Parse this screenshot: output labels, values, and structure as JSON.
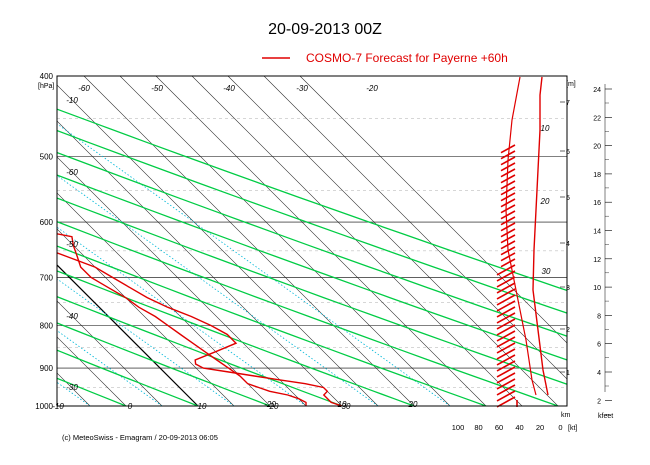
{
  "title": "20-09-2013  00Z",
  "legend": {
    "label": "COSMO-7 Forecast for Payerne   +60h",
    "color": "#e00000"
  },
  "footer": "(c) MeteoSwiss - Emagram  /  20-09-2013  06:05",
  "colors": {
    "temperature_profile": "#e00000",
    "dewpoint_profile": "#e00000",
    "isotherm_grid": "#000000",
    "dry_adiabat": "#00cc44",
    "mixing_ratio": "#00b8d8",
    "wind_barb": "#e00000"
  },
  "chart_data": {
    "type": "line",
    "y_scale": "log-pressure",
    "ylabel": "[hPa]",
    "ylim": [
      1000,
      400
    ],
    "xlim": [
      -40,
      40
    ],
    "pressure_ticks": [
      "400",
      "500",
      "600",
      "700",
      "800",
      "900",
      "1000"
    ],
    "temperature_ticks": [
      "-10",
      "0",
      "10",
      "20",
      "30"
    ],
    "temperature_labels_inner": [
      "-60",
      "-50",
      "-40",
      "-30",
      "-20",
      "-10",
      "-60",
      "-50",
      "-40",
      "-30",
      "-20",
      "10",
      "20",
      "30"
    ],
    "height_m_label": "[m]",
    "height_m_ticks": [
      "7",
      "6",
      "5",
      "4",
      "3",
      "2",
      "1"
    ],
    "height_kfeet_label": "kfeet",
    "height_kfeet_ticks": [
      "24",
      "22",
      "20",
      "18",
      "16",
      "14",
      "12",
      "10",
      "8",
      "6",
      "4",
      "2"
    ],
    "km_label": "km",
    "wind_axis_label": "[kt]",
    "wind_axis_ticks": [
      "100",
      "80",
      "60",
      "40",
      "20",
      "0"
    ],
    "wind_speed_ticks": [
      "10",
      "20",
      "30"
    ],
    "series": [
      {
        "name": "Temperature",
        "points": [
          [
            1000,
            20
          ],
          [
            990,
            19
          ],
          [
            970,
            19
          ],
          [
            960,
            20
          ],
          [
            950,
            20
          ],
          [
            940,
            18
          ],
          [
            930,
            15
          ],
          [
            920,
            12
          ],
          [
            910,
            9
          ],
          [
            900,
            6
          ],
          [
            890,
            5.5
          ],
          [
            880,
            6
          ],
          [
            860,
            10
          ],
          [
            840,
            14
          ],
          [
            820,
            14
          ],
          [
            800,
            13
          ],
          [
            780,
            11.5
          ],
          [
            760,
            9.5
          ],
          [
            740,
            8
          ],
          [
            720,
            7
          ],
          [
            700,
            6
          ],
          [
            680,
            5
          ],
          [
            660,
            2.5
          ],
          [
            640,
            0
          ],
          [
            620,
            -2.5
          ],
          [
            600,
            -5
          ],
          [
            580,
            -7.5
          ],
          [
            560,
            -10
          ],
          [
            540,
            -12.5
          ],
          [
            520,
            -15
          ],
          [
            500,
            -17
          ],
          [
            480,
            -19
          ],
          [
            460,
            -21
          ],
          [
            440,
            -24
          ],
          [
            420,
            -27.5
          ],
          [
            400,
            -31
          ]
        ]
      },
      {
        "name": "Dewpoint",
        "points": [
          [
            1000,
            15
          ],
          [
            990,
            15.5
          ],
          [
            980,
            15
          ],
          [
            970,
            14
          ],
          [
            960,
            12
          ],
          [
            950,
            11
          ],
          [
            940,
            10
          ],
          [
            920,
            10
          ],
          [
            900,
            9.5
          ],
          [
            880,
            9
          ],
          [
            860,
            8.5
          ],
          [
            840,
            8
          ],
          [
            820,
            7.5
          ],
          [
            800,
            7
          ],
          [
            780,
            6.5
          ],
          [
            760,
            5.5
          ],
          [
            740,
            5
          ],
          [
            720,
            4
          ],
          [
            700,
            3
          ],
          [
            680,
            3
          ],
          [
            660,
            4
          ],
          [
            640,
            5
          ],
          [
            625,
            6
          ],
          [
            610,
            1
          ],
          [
            600,
            -1
          ],
          [
            580,
            -4
          ],
          [
            560,
            -8
          ],
          [
            540,
            -12
          ],
          [
            520,
            -16
          ],
          [
            500,
            -19
          ],
          [
            480,
            -22
          ],
          [
            460,
            -25
          ],
          [
            440,
            -28
          ],
          [
            420,
            -31
          ],
          [
            400,
            -34
          ]
        ]
      }
    ]
  }
}
